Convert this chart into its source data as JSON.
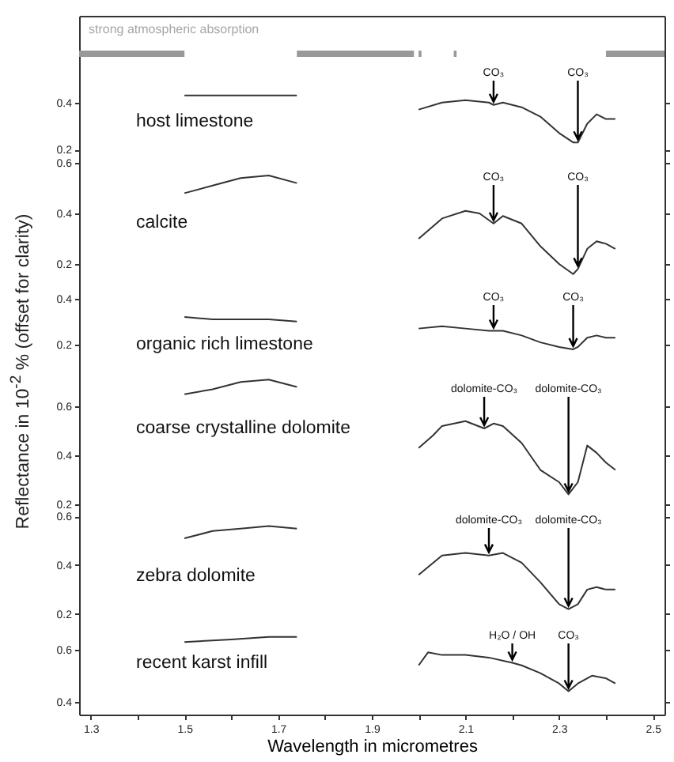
{
  "chart_data": [
    {
      "type": "line",
      "ylabel": "Reflectance in 10$^{-2}$ % (offset for clarity)",
      "xlim": [
        1.275,
        2.525
      ],
      "tick_labels": "y",
      "ylim": [
        0.17,
        0.77
      ],
      "yticks": [
        0.2,
        0.4
      ],
      "bands": [
        {
          "axis": "x",
          "from": 1.275,
          "to": 1.5,
          "label": "strong atmospheric absorption",
          "color": "#999999"
        },
        {
          "axis": "x",
          "from": 1.74,
          "to": 1.99,
          "color": "#999999"
        },
        {
          "axis": "x",
          "from": 2.0,
          "to": 2.006,
          "color": "#999999"
        },
        {
          "axis": "x",
          "from": 2.075,
          "to": 2.081,
          "color": "#999999"
        },
        {
          "axis": "x",
          "from": 2.4,
          "to": 2.525,
          "color": "#999999"
        }
      ],
      "x": [
        1.5,
        1.56,
        1.62,
        1.68,
        1.74,
        1.87,
        2.0,
        2.05,
        2.1,
        2.15,
        2.16,
        2.18,
        2.22,
        2.26,
        2.3,
        2.33,
        2.34,
        2.36,
        2.38,
        2.4,
        2.42
      ],
      "series": [
        {
          "name": "host limestone",
          "color": "#333333",
          "values": [
            0.43,
            0.43,
            0.43,
            0.43,
            0.43,
            null,
            0.37,
            0.4,
            0.41,
            0.4,
            0.39,
            0.4,
            0.38,
            0.34,
            0.27,
            0.23,
            0.23,
            0.31,
            0.35,
            0.33,
            0.33
          ]
        }
      ],
      "annotations": [
        {
          "text": "CO₃",
          "x": 2.16,
          "y": 0.39
        },
        {
          "text": "CO₃",
          "x": 2.34,
          "y": 0.23
        }
      ]
    },
    {
      "type": "line",
      "xlim": [
        1.275,
        2.525
      ],
      "tick_labels": "y",
      "ylim": [
        0.1,
        0.625
      ],
      "yticks": [
        0.2,
        0.4,
        0.6
      ],
      "x": [
        1.5,
        1.56,
        1.62,
        1.68,
        1.74,
        1.87,
        2.0,
        2.05,
        2.1,
        2.13,
        2.16,
        2.18,
        2.22,
        2.26,
        2.3,
        2.33,
        2.34,
        2.36,
        2.38,
        2.4,
        2.42
      ],
      "series": [
        {
          "name": "calcite",
          "color": "#333333",
          "values": [
            0.48,
            0.51,
            0.54,
            0.55,
            0.52,
            null,
            0.3,
            0.38,
            0.41,
            0.4,
            0.36,
            0.39,
            0.36,
            0.27,
            0.2,
            0.16,
            0.18,
            0.26,
            0.29,
            0.28,
            0.26
          ]
        }
      ],
      "annotations": [
        {
          "text": "CO₃",
          "x": 2.16,
          "y": 0.36
        },
        {
          "text": "CO₃",
          "x": 2.34,
          "y": 0.18
        }
      ]
    },
    {
      "type": "line",
      "xlim": [
        1.275,
        2.525
      ],
      "tick_labels": "y",
      "ylim": [
        0.07,
        0.44
      ],
      "yticks": [
        0.2,
        0.4
      ],
      "x": [
        1.5,
        1.56,
        1.62,
        1.68,
        1.74,
        1.87,
        2.0,
        2.05,
        2.1,
        2.15,
        2.16,
        2.18,
        2.22,
        2.26,
        2.3,
        2.33,
        2.34,
        2.36,
        2.38,
        2.4,
        2.42
      ],
      "series": [
        {
          "name": "organic rich limestone",
          "color": "#333333",
          "values": [
            0.32,
            0.31,
            0.31,
            0.31,
            0.3,
            null,
            0.27,
            0.28,
            0.27,
            0.26,
            0.26,
            0.26,
            0.24,
            0.21,
            0.19,
            0.18,
            0.19,
            0.23,
            0.24,
            0.23,
            0.23
          ]
        }
      ],
      "annotations": [
        {
          "text": "CO₃",
          "x": 2.16,
          "y": 0.26
        },
        {
          "text": "CO₃",
          "x": 2.33,
          "y": 0.18
        }
      ]
    },
    {
      "type": "line",
      "xlim": [
        1.275,
        2.525
      ],
      "tick_labels": "y",
      "ylim": [
        0.18,
        0.73
      ],
      "yticks": [
        0.2,
        0.4,
        0.6
      ],
      "x": [
        1.5,
        1.56,
        1.62,
        1.68,
        1.74,
        1.87,
        2.0,
        2.03,
        2.05,
        2.1,
        2.14,
        2.16,
        2.18,
        2.22,
        2.26,
        2.3,
        2.32,
        2.34,
        2.36,
        2.38,
        2.4,
        2.42
      ],
      "series": [
        {
          "name": "coarse crystalline dolomite",
          "color": "#333333",
          "values": [
            0.65,
            0.67,
            0.7,
            0.71,
            0.68,
            null,
            0.43,
            0.48,
            0.52,
            0.54,
            0.51,
            0.53,
            0.52,
            0.45,
            0.34,
            0.29,
            0.24,
            0.29,
            0.44,
            0.41,
            0.37,
            0.34
          ]
        }
      ],
      "annotations": [
        {
          "text": "dolomite-CO₃",
          "x": 2.14,
          "y": 0.51
        },
        {
          "text": "dolomite-CO₃",
          "x": 2.32,
          "y": 0.24
        }
      ]
    },
    {
      "type": "line",
      "xlim": [
        1.275,
        2.525
      ],
      "tick_labels": "y",
      "ylim": [
        0.17,
        0.63
      ],
      "yticks": [
        0.2,
        0.4,
        0.6
      ],
      "x": [
        1.5,
        1.56,
        1.62,
        1.68,
        1.74,
        1.87,
        2.0,
        2.05,
        2.1,
        2.15,
        2.18,
        2.22,
        2.26,
        2.3,
        2.32,
        2.34,
        2.36,
        2.38,
        2.4,
        2.42
      ],
      "series": [
        {
          "name": "zebra dolomite",
          "color": "#333333",
          "values": [
            0.51,
            0.54,
            0.55,
            0.56,
            0.55,
            null,
            0.36,
            0.44,
            0.45,
            0.44,
            0.45,
            0.41,
            0.33,
            0.24,
            0.22,
            0.24,
            0.3,
            0.31,
            0.3,
            0.3
          ]
        }
      ],
      "annotations": [
        {
          "text": "dolomite-CO₃",
          "x": 2.15,
          "y": 0.44
        },
        {
          "text": "dolomite-CO₃",
          "x": 2.32,
          "y": 0.22
        }
      ]
    },
    {
      "type": "line",
      "xlabel": "Wavelength in micrometres",
      "xlim": [
        1.275,
        2.525
      ],
      "xticks": [
        1.3,
        {
          "value": 1.4,
          "label": null
        },
        1.5,
        {
          "value": 1.6,
          "label": null
        },
        1.7,
        {
          "value": 1.8,
          "label": null
        },
        1.9,
        {
          "value": 2.0,
          "label": null
        },
        2.1,
        {
          "value": 2.2,
          "label": null
        },
        2.3,
        {
          "value": 2.4,
          "label": null
        },
        2.5
      ],
      "ylim": [
        0.35,
        0.71
      ],
      "yticks": [
        0.4,
        0.6
      ],
      "x": [
        1.5,
        1.6,
        1.68,
        1.74,
        1.87,
        2.0,
        2.02,
        2.05,
        2.1,
        2.15,
        2.2,
        2.22,
        2.26,
        2.3,
        2.32,
        2.34,
        2.37,
        2.4,
        2.42
      ],
      "series": [
        {
          "name": "recent karst infill",
          "color": "#333333",
          "values": [
            0.63,
            0.64,
            0.65,
            0.65,
            null,
            0.54,
            0.59,
            0.58,
            0.58,
            0.57,
            0.55,
            0.54,
            0.51,
            0.47,
            0.44,
            0.47,
            0.5,
            0.49,
            0.47
          ]
        }
      ],
      "annotations": [
        {
          "text": "H₂O / OH",
          "x": 2.2,
          "y": 0.55
        },
        {
          "text": "CO₃",
          "x": 2.32,
          "y": 0.44
        }
      ]
    }
  ]
}
